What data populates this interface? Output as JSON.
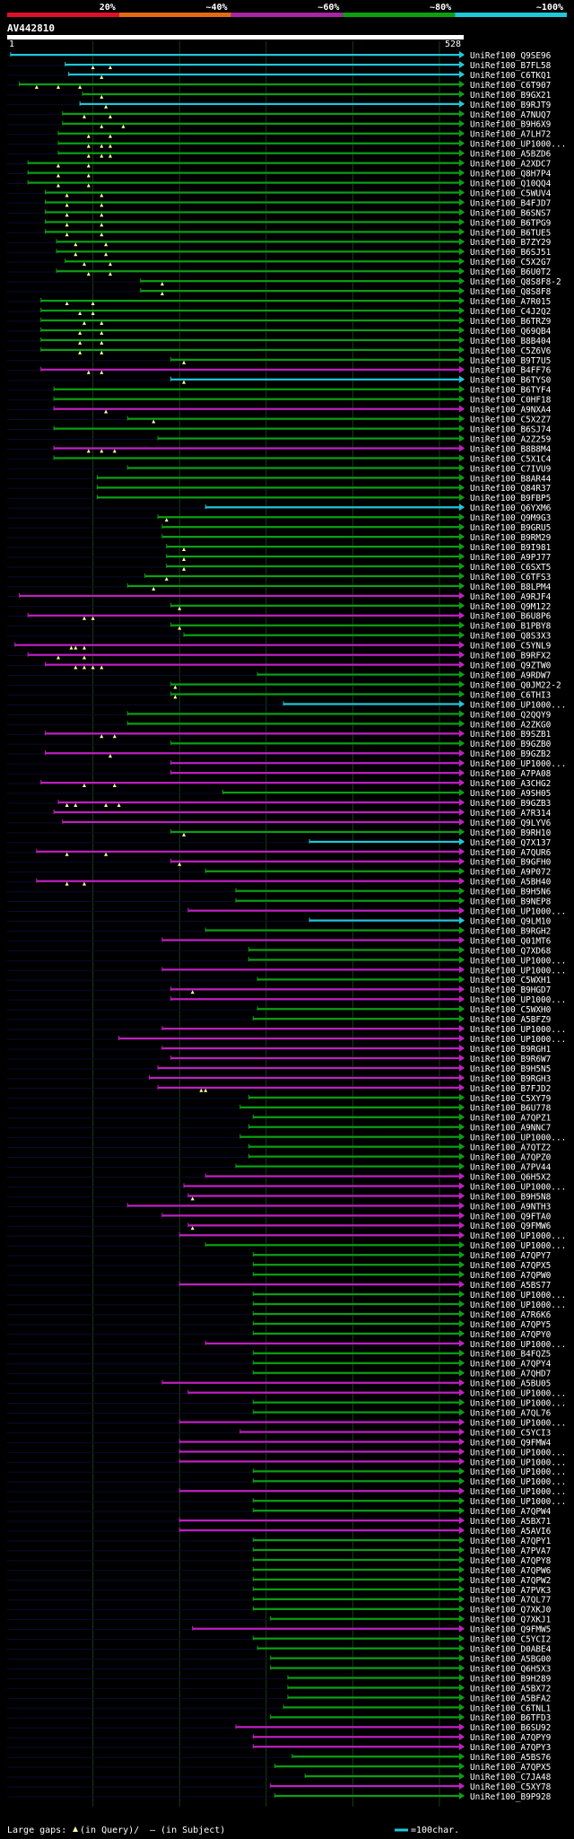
{
  "chart_data": {
    "type": "alignment_overview",
    "query": {
      "name": "AV442810",
      "start": 1,
      "end": 528,
      "start_label": "1",
      "end_label": "528"
    },
    "identity_legend": [
      {
        "label": "20%",
        "color": "#e0102a"
      },
      {
        "label": "~40%",
        "color": "#e36a12"
      },
      {
        "label": "~60%",
        "color": "#a626a4"
      },
      {
        "label": "~80%",
        "color": "#0aa010"
      },
      {
        "label": "~100%",
        "color": "#1ec8d8"
      }
    ],
    "gridlines": [
      100,
      200,
      300,
      400,
      500
    ],
    "footer": {
      "gaps_label": "Large gaps:",
      "gaps_in_query": "(in Query)/",
      "gaps_in_subject": "– (in Subject)",
      "scale_label": "=100char."
    },
    "hits": [
      [
        "UniRef100_Q9SE96",
        5,
        528,
        "c",
        []
      ],
      [
        "UniRef100_B7FL58",
        68,
        528,
        "c",
        [
          100,
          120
        ]
      ],
      [
        "UniRef100_C6TKQ1",
        72,
        528,
        "c",
        [
          110
        ]
      ],
      [
        "UniRef100_C6T907",
        15,
        528,
        "g",
        [
          35,
          60,
          85
        ]
      ],
      [
        "UniRef100_B9GX21",
        88,
        528,
        "g",
        [
          110
        ]
      ],
      [
        "UniRef100_B9RJT9",
        85,
        528,
        "c",
        [
          115
        ]
      ],
      [
        "UniRef100_A7NUQ7",
        65,
        528,
        "g",
        [
          90,
          120
        ]
      ],
      [
        "UniRef100_B9H6X9",
        65,
        528,
        "g",
        [
          110,
          135
        ]
      ],
      [
        "UniRef100_A7LH72",
        60,
        528,
        "g",
        [
          95,
          120
        ]
      ],
      [
        "UniRef100_UP1000...",
        60,
        528,
        "g",
        [
          95,
          110,
          120
        ]
      ],
      [
        "UniRef100_A5BZD6",
        60,
        528,
        "g",
        [
          95,
          110,
          120
        ]
      ],
      [
        "UniRef100_A2XDC7",
        25,
        528,
        "g",
        [
          60,
          95
        ]
      ],
      [
        "UniRef100_Q8H7P4",
        25,
        528,
        "g",
        [
          60,
          95
        ]
      ],
      [
        "UniRef100_Q10QQ4",
        25,
        528,
        "g",
        [
          60,
          95
        ]
      ],
      [
        "UniRef100_C5WUV4",
        45,
        528,
        "g",
        [
          70,
          110
        ]
      ],
      [
        "UniRef100_B4FJD7",
        45,
        528,
        "g",
        [
          70,
          110
        ]
      ],
      [
        "UniRef100_B6SNS7",
        45,
        528,
        "g",
        [
          70,
          110
        ]
      ],
      [
        "UniRef100_B6TPG9",
        45,
        528,
        "g",
        [
          70,
          110
        ]
      ],
      [
        "UniRef100_B6TUE5",
        45,
        528,
        "g",
        [
          70,
          110
        ]
      ],
      [
        "UniRef100_B7ZY29",
        58,
        528,
        "g",
        [
          80,
          115
        ]
      ],
      [
        "UniRef100_B6SJ51",
        58,
        528,
        "g",
        [
          80,
          115
        ]
      ],
      [
        "UniRef100_C5X2G7",
        68,
        528,
        "g",
        [
          90,
          120
        ]
      ],
      [
        "UniRef100_B6U0T2",
        58,
        528,
        "g",
        [
          95,
          120
        ]
      ],
      [
        "UniRef100_Q8S8F8-2",
        155,
        528,
        "g",
        [
          180
        ]
      ],
      [
        "UniRef100_Q8S8F8",
        155,
        528,
        "g",
        [
          180
        ]
      ],
      [
        "UniRef100_A7R015",
        40,
        528,
        "g",
        [
          70,
          100
        ]
      ],
      [
        "UniRef100_C4J2Q2",
        40,
        528,
        "g",
        [
          85,
          100
        ]
      ],
      [
        "UniRef100_B6TRZ9",
        40,
        528,
        "g",
        [
          90,
          110
        ]
      ],
      [
        "UniRef100_Q69QB4",
        40,
        528,
        "g",
        [
          85,
          110
        ]
      ],
      [
        "UniRef100_B8B404",
        40,
        528,
        "g",
        [
          85,
          110
        ]
      ],
      [
        "UniRef100_C5Z6V6",
        40,
        528,
        "g",
        [
          85,
          110
        ]
      ],
      [
        "UniRef100_B9T7U5",
        190,
        528,
        "g",
        [
          205
        ]
      ],
      [
        "UniRef100_B4FF76",
        40,
        528,
        "m",
        [
          95,
          110
        ]
      ],
      [
        "UniRef100_B6TYS0",
        190,
        528,
        "c",
        [
          205
        ]
      ],
      [
        "UniRef100_B6TYF4",
        55,
        528,
        "g",
        []
      ],
      [
        "UniRef100_C0HF18",
        55,
        528,
        "g",
        []
      ],
      [
        "UniRef100_A9NXA4",
        55,
        528,
        "m",
        [
          115
        ]
      ],
      [
        "UniRef100_C5X2Z7",
        140,
        528,
        "g",
        [
          170
        ]
      ],
      [
        "UniRef100_B6SJ74",
        55,
        528,
        "g",
        []
      ],
      [
        "UniRef100_A2Z259",
        175,
        528,
        "g",
        []
      ],
      [
        "UniRef100_B8B8M4",
        55,
        528,
        "m",
        [
          95,
          110,
          125
        ]
      ],
      [
        "UniRef100_C5X1C4",
        55,
        528,
        "g",
        []
      ],
      [
        "UniRef100_C7IVU9",
        140,
        528,
        "g",
        []
      ],
      [
        "UniRef100_B8AR44",
        105,
        528,
        "g",
        []
      ],
      [
        "UniRef100_Q84R37",
        105,
        528,
        "g",
        []
      ],
      [
        "UniRef100_B9FBP5",
        105,
        528,
        "g",
        []
      ],
      [
        "UniRef100_Q6YXM6",
        230,
        528,
        "c",
        []
      ],
      [
        "UniRef100_Q9M9G3",
        175,
        528,
        "g",
        [
          185
        ]
      ],
      [
        "UniRef100_B9GRU5",
        180,
        528,
        "g",
        []
      ],
      [
        "UniRef100_B9RM29",
        180,
        528,
        "g",
        []
      ],
      [
        "UniRef100_B9I981",
        185,
        528,
        "g",
        [
          205
        ]
      ],
      [
        "UniRef100_A9PJ77",
        185,
        528,
        "g",
        [
          205
        ]
      ],
      [
        "UniRef100_C6SXT5",
        185,
        528,
        "g",
        [
          205
        ]
      ],
      [
        "UniRef100_C6TFS3",
        160,
        528,
        "g",
        [
          185
        ]
      ],
      [
        "UniRef100_B8LPM4",
        140,
        528,
        "g",
        [
          170
        ]
      ],
      [
        "UniRef100_A9RJF4",
        15,
        528,
        "m",
        []
      ],
      [
        "UniRef100_Q9M122",
        190,
        528,
        "g",
        [
          200
        ]
      ],
      [
        "UniRef100_B6U8P6",
        25,
        528,
        "m",
        [
          90,
          100
        ]
      ],
      [
        "UniRef100_B1PBY8",
        190,
        528,
        "g",
        [
          200
        ]
      ],
      [
        "UniRef100_Q8S3X3",
        205,
        528,
        "g",
        []
      ],
      [
        "UniRef100_C5YNL9",
        10,
        528,
        "m",
        [
          75,
          80,
          90
        ]
      ],
      [
        "UniRef100_B9RFX2",
        25,
        528,
        "m",
        [
          60,
          90
        ]
      ],
      [
        "UniRef100_Q9ZTW0",
        45,
        528,
        "m",
        [
          80,
          90,
          100,
          110
        ]
      ],
      [
        "UniRef100_A9RDW7",
        290,
        528,
        "g",
        []
      ],
      [
        "UniRef100_Q0JM22-2",
        190,
        528,
        "g",
        [
          195
        ]
      ],
      [
        "UniRef100_C6THI3",
        190,
        528,
        "g",
        [
          195
        ]
      ],
      [
        "UniRef100_UP1000...",
        320,
        528,
        "c",
        []
      ],
      [
        "UniRef100_Q2QQY9",
        140,
        528,
        "g",
        []
      ],
      [
        "UniRef100_A2ZKG0",
        140,
        528,
        "g",
        []
      ],
      [
        "UniRef100_B9SZB1",
        45,
        528,
        "m",
        [
          110,
          125
        ]
      ],
      [
        "UniRef100_B9GZB0",
        190,
        528,
        "g",
        []
      ],
      [
        "UniRef100_B9GZB2",
        45,
        528,
        "m",
        [
          120
        ]
      ],
      [
        "UniRef100_UP1000...",
        190,
        528,
        "m",
        []
      ],
      [
        "UniRef100_A7PA08",
        190,
        528,
        "m",
        []
      ],
      [
        "UniRef100_A3CHG2",
        40,
        528,
        "m",
        [
          90,
          125
        ]
      ],
      [
        "UniRef100_A9SH05",
        250,
        528,
        "g",
        []
      ],
      [
        "UniRef100_B9GZB3",
        60,
        528,
        "m",
        [
          70,
          80,
          115,
          130
        ]
      ],
      [
        "UniRef100_A7R314",
        55,
        528,
        "m",
        []
      ],
      [
        "UniRef100_Q9LYV6",
        65,
        528,
        "m",
        []
      ],
      [
        "UniRef100_B9RH10",
        190,
        528,
        "g",
        [
          205
        ]
      ],
      [
        "UniRef100_Q7X137",
        350,
        528,
        "c",
        []
      ],
      [
        "UniRef100_A7QUR6",
        35,
        528,
        "m",
        [
          70,
          115
        ]
      ],
      [
        "UniRef100_B9GFH0",
        190,
        528,
        "m",
        [
          200
        ]
      ],
      [
        "UniRef100_A9P072",
        230,
        528,
        "g",
        []
      ],
      [
        "UniRef100_A5BH40",
        35,
        528,
        "m",
        [
          70,
          90
        ]
      ],
      [
        "UniRef100_B9H5N6",
        265,
        528,
        "g",
        []
      ],
      [
        "UniRef100_B9NEP8",
        265,
        528,
        "g",
        []
      ],
      [
        "UniRef100_UP1000...",
        210,
        528,
        "m",
        []
      ],
      [
        "UniRef100_Q9LM10",
        350,
        528,
        "c",
        []
      ],
      [
        "UniRef100_B9RGH2",
        230,
        528,
        "g",
        []
      ],
      [
        "UniRef100_Q01MT6",
        180,
        528,
        "m",
        []
      ],
      [
        "UniRef100_Q7XD68",
        280,
        528,
        "g",
        []
      ],
      [
        "UniRef100_UP1000...",
        280,
        528,
        "g",
        []
      ],
      [
        "UniRef100_UP1000...",
        180,
        528,
        "m",
        []
      ],
      [
        "UniRef100_C5WXH1",
        290,
        528,
        "g",
        []
      ],
      [
        "UniRef100_B9HGD7",
        190,
        528,
        "m",
        [
          215
        ]
      ],
      [
        "UniRef100_UP1000...",
        190,
        528,
        "m",
        []
      ],
      [
        "UniRef100_C5WXH0",
        290,
        528,
        "g",
        []
      ],
      [
        "UniRef100_A5BFZ9",
        285,
        528,
        "g",
        []
      ],
      [
        "UniRef100_UP1000...",
        180,
        528,
        "m",
        []
      ],
      [
        "UniRef100_UP1000...",
        130,
        528,
        "m",
        []
      ],
      [
        "UniRef100_B9RGH1",
        180,
        528,
        "m",
        []
      ],
      [
        "UniRef100_B9R6W7",
        190,
        528,
        "m",
        []
      ],
      [
        "UniRef100_B9H5N5",
        175,
        528,
        "m",
        []
      ],
      [
        "UniRef100_B9RGH3",
        165,
        528,
        "m",
        []
      ],
      [
        "UniRef100_B7FJD2",
        175,
        528,
        "m",
        [
          225,
          230
        ]
      ],
      [
        "UniRef100_C5XY79",
        280,
        528,
        "g",
        []
      ],
      [
        "UniRef100_B6U778",
        270,
        528,
        "g",
        []
      ],
      [
        "UniRef100_A7QPZ1",
        285,
        528,
        "g",
        []
      ],
      [
        "UniRef100_A9NNC7",
        280,
        528,
        "g",
        []
      ],
      [
        "UniRef100_UP1000...",
        270,
        528,
        "g",
        []
      ],
      [
        "UniRef100_A7QTZ2",
        280,
        528,
        "g",
        []
      ],
      [
        "UniRef100_A7QPZ0",
        280,
        528,
        "g",
        []
      ],
      [
        "UniRef100_A7PV44",
        265,
        528,
        "g",
        []
      ],
      [
        "UniRef100_Q6H5X2",
        230,
        528,
        "m",
        []
      ],
      [
        "UniRef100_UP1000...",
        205,
        528,
        "m",
        []
      ],
      [
        "UniRef100_B9H5N8",
        210,
        528,
        "m",
        [
          215
        ]
      ],
      [
        "UniRef100_A9NTH3",
        140,
        528,
        "m",
        []
      ],
      [
        "UniRef100_Q9FTA0",
        180,
        528,
        "m",
        []
      ],
      [
        "UniRef100_Q9FMW6",
        210,
        528,
        "m",
        [
          215
        ]
      ],
      [
        "UniRef100_UP1000...",
        200,
        528,
        "m",
        []
      ],
      [
        "UniRef100_UP1000...",
        230,
        528,
        "g",
        []
      ],
      [
        "UniRef100_A7QPY7",
        285,
        528,
        "g",
        []
      ],
      [
        "UniRef100_A7QPX5",
        285,
        528,
        "g",
        []
      ],
      [
        "UniRef100_A7QPW0",
        285,
        528,
        "g",
        []
      ],
      [
        "UniRef100_A5BS77",
        200,
        528,
        "m",
        []
      ],
      [
        "UniRef100_UP1000...",
        285,
        528,
        "g",
        []
      ],
      [
        "UniRef100_UP1000...",
        285,
        528,
        "g",
        []
      ],
      [
        "UniRef100_A7R6K6",
        285,
        528,
        "g",
        []
      ],
      [
        "UniRef100_A7QPY5",
        285,
        528,
        "g",
        []
      ],
      [
        "UniRef100_A7QPY0",
        285,
        528,
        "g",
        []
      ],
      [
        "UniRef100_UP1000...",
        230,
        528,
        "m",
        []
      ],
      [
        "UniRef100_B4FQZ5",
        285,
        528,
        "g",
        []
      ],
      [
        "UniRef100_A7QPY4",
        285,
        528,
        "g",
        []
      ],
      [
        "UniRef100_A7QHD7",
        285,
        528,
        "g",
        []
      ],
      [
        "UniRef100_A5BU05",
        180,
        528,
        "m",
        []
      ],
      [
        "UniRef100_UP1000...",
        210,
        528,
        "m",
        []
      ],
      [
        "UniRef100_UP1000...",
        285,
        528,
        "g",
        []
      ],
      [
        "UniRef100_A7QL76",
        285,
        528,
        "g",
        []
      ],
      [
        "UniRef100_UP1000...",
        200,
        528,
        "m",
        []
      ],
      [
        "UniRef100_C5YCI3",
        270,
        528,
        "m",
        []
      ],
      [
        "UniRef100_Q9FMW4",
        200,
        528,
        "m",
        []
      ],
      [
        "UniRef100_UP1000...",
        200,
        528,
        "m",
        []
      ],
      [
        "UniRef100_UP1000...",
        200,
        528,
        "m",
        []
      ],
      [
        "UniRef100_UP1000...",
        285,
        528,
        "g",
        []
      ],
      [
        "UniRef100_UP1000...",
        285,
        528,
        "g",
        []
      ],
      [
        "UniRef100_UP1000...",
        200,
        528,
        "m",
        []
      ],
      [
        "UniRef100_UP1000...",
        285,
        528,
        "g",
        []
      ],
      [
        "UniRef100_A7QPW4",
        285,
        528,
        "g",
        []
      ],
      [
        "UniRef100_A5BX71",
        200,
        528,
        "m",
        []
      ],
      [
        "UniRef100_A5AVI6",
        200,
        528,
        "m",
        []
      ],
      [
        "UniRef100_A7QPY1",
        285,
        528,
        "g",
        []
      ],
      [
        "UniRef100_A7PVA7",
        285,
        528,
        "g",
        []
      ],
      [
        "UniRef100_A7QPY8",
        285,
        528,
        "g",
        []
      ],
      [
        "UniRef100_A7QPW6",
        285,
        528,
        "g",
        []
      ],
      [
        "UniRef100_A7QPW2",
        285,
        528,
        "g",
        []
      ],
      [
        "UniRef100_A7PVK3",
        285,
        528,
        "g",
        []
      ],
      [
        "UniRef100_A7QL77",
        285,
        528,
        "g",
        []
      ],
      [
        "UniRef100_Q7XKJ0",
        285,
        528,
        "g",
        []
      ],
      [
        "UniRef100_Q7XKJ1",
        305,
        528,
        "g",
        []
      ],
      [
        "UniRef100_Q9FMW5",
        215,
        528,
        "m",
        []
      ],
      [
        "UniRef100_C5YCI2",
        285,
        528,
        "g",
        []
      ],
      [
        "UniRef100_D0ABE4",
        290,
        528,
        "g",
        []
      ],
      [
        "UniRef100_A5BG00",
        305,
        528,
        "g",
        []
      ],
      [
        "UniRef100_Q6H5X3",
        305,
        528,
        "g",
        []
      ],
      [
        "UniRef100_B9H289",
        325,
        528,
        "g",
        []
      ],
      [
        "UniRef100_A5BX72",
        325,
        528,
        "g",
        []
      ],
      [
        "UniRef100_A5BFA2",
        325,
        528,
        "g",
        []
      ],
      [
        "UniRef100_C6TNL1",
        320,
        528,
        "g",
        []
      ],
      [
        "UniRef100_B6TFD3",
        305,
        528,
        "g",
        []
      ],
      [
        "UniRef100_B6SU92",
        265,
        528,
        "m",
        []
      ],
      [
        "UniRef100_A7QPY9",
        285,
        528,
        "m",
        []
      ],
      [
        "UniRef100_A7QPY3",
        285,
        528,
        "m",
        []
      ],
      [
        "UniRef100_A5BS76",
        330,
        528,
        "g",
        []
      ],
      [
        "UniRef100_A7QPX5",
        310,
        528,
        "g",
        []
      ],
      [
        "UniRef100_C7JA48",
        345,
        528,
        "g",
        []
      ],
      [
        "UniRef100_C5XY78",
        305,
        528,
        "m",
        []
      ],
      [
        "UniRef100_B9P928",
        310,
        528,
        "g",
        []
      ]
    ]
  }
}
